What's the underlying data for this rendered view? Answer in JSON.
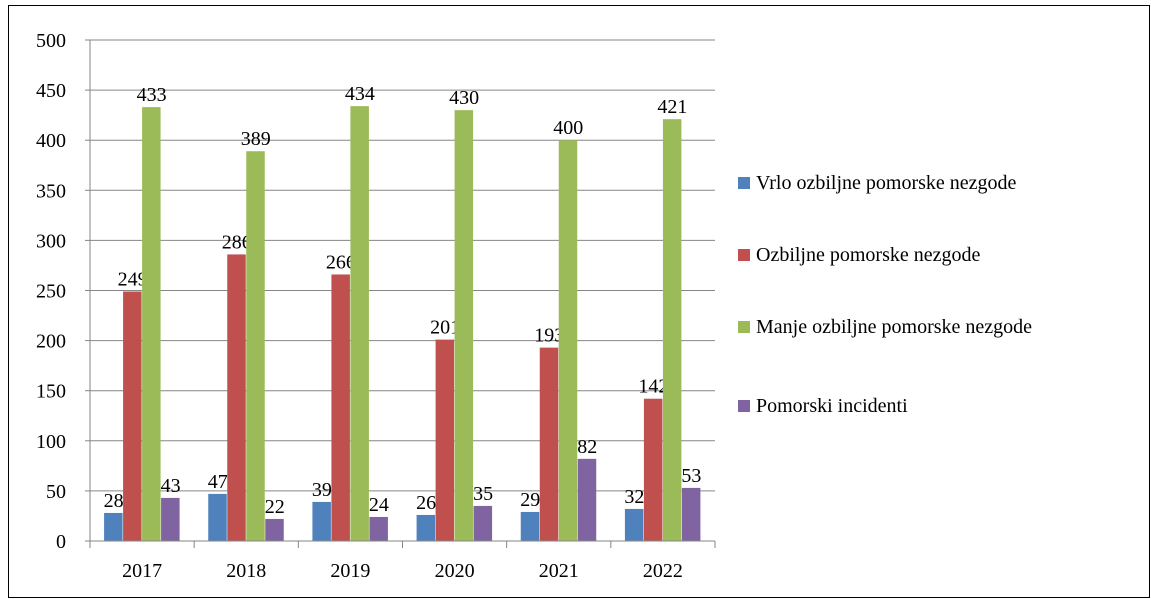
{
  "chart_data": {
    "type": "bar",
    "categories": [
      "2017",
      "2018",
      "2019",
      "2020",
      "2021",
      "2022"
    ],
    "series": [
      {
        "name": "Vrlo ozbiljne pomorske nezgode",
        "color": "#4f81bd",
        "values": [
          28,
          47,
          39,
          26,
          29,
          32
        ]
      },
      {
        "name": "Ozbiljne pomorske nezgode",
        "color": "#c0504d",
        "values": [
          249,
          286,
          266,
          201,
          193,
          142
        ]
      },
      {
        "name": "Manje ozbiljne pomorske nezgode",
        "color": "#9bbb59",
        "values": [
          433,
          389,
          434,
          430,
          400,
          421
        ]
      },
      {
        "name": "Pomorski incidenti",
        "color": "#8064a2",
        "values": [
          43,
          22,
          24,
          35,
          82,
          53
        ]
      }
    ],
    "ylim": [
      0,
      500
    ],
    "yticks": [
      0,
      50,
      100,
      150,
      200,
      250,
      300,
      350,
      400,
      450,
      500
    ],
    "grid": true,
    "legend": "right"
  }
}
